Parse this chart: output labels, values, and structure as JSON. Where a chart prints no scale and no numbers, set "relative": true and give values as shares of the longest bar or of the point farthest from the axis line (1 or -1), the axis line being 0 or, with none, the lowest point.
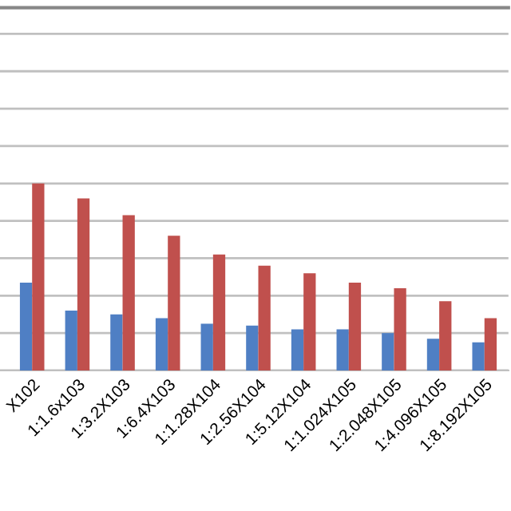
{
  "chart_data": {
    "type": "bar",
    "relative": true,
    "grid": "y",
    "categories": [
      "X102",
      "1:1.6x103",
      "1:3.2X103",
      "1:6.4X103",
      "1:1.28X104",
      "1:2.56X104",
      "1:5.12X104",
      "1:1.024X105",
      "1:2.048X105",
      "1:4.096X105",
      "1:8.192X105"
    ],
    "series": [
      {
        "color": "#4f7fc4",
        "values": [
          0.47,
          0.32,
          0.3,
          0.28,
          0.25,
          0.24,
          0.22,
          0.22,
          0.2,
          0.17,
          0.15
        ]
      },
      {
        "color": "#c0504d",
        "values": [
          1,
          0.92,
          0.83,
          0.72,
          0.62,
          0.56,
          0.52,
          0.47,
          0.44,
          0.37,
          0.28
        ]
      }
    ]
  }
}
